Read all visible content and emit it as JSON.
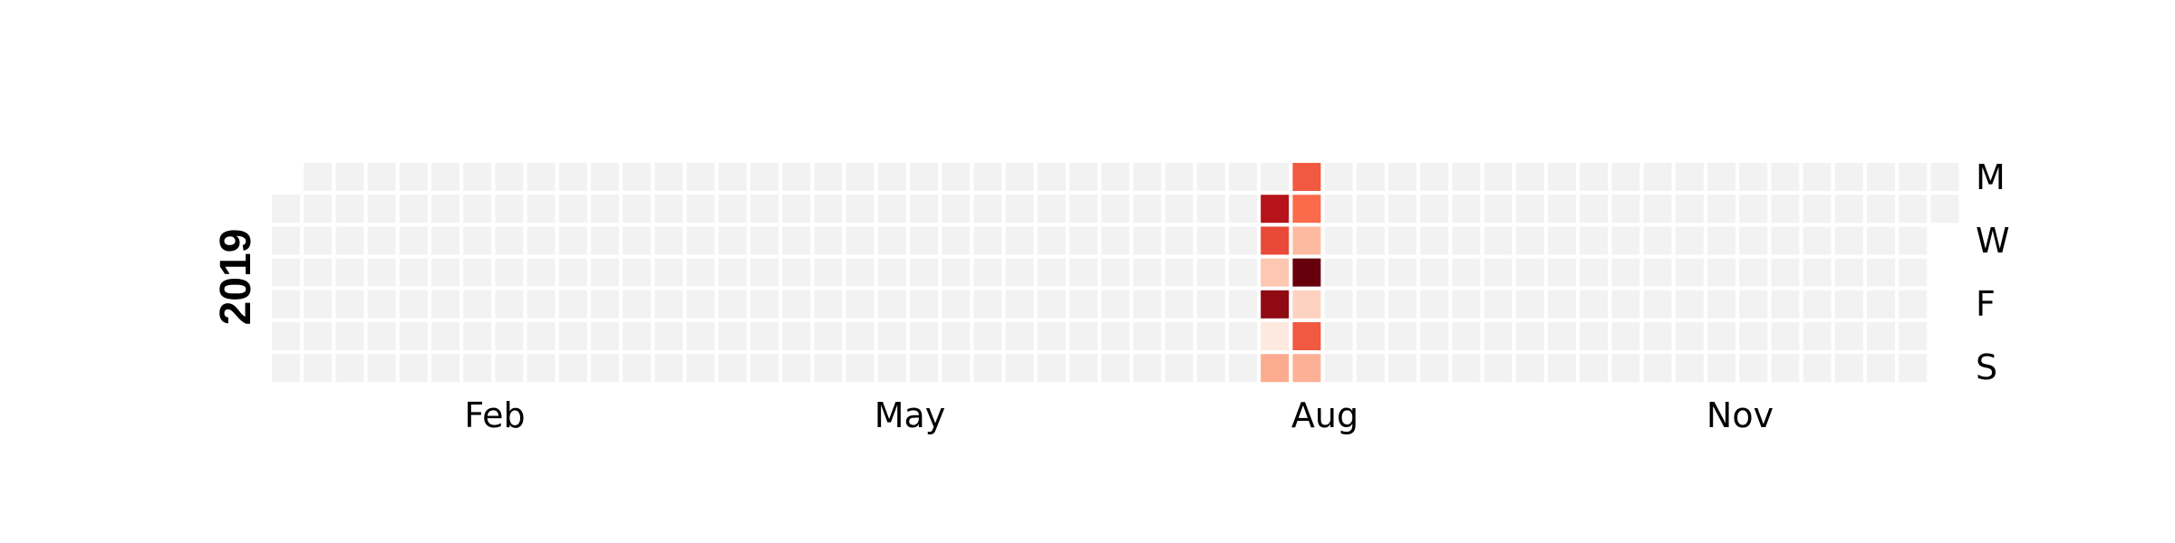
{
  "chart_data": {
    "type": "heatmap",
    "title": "",
    "year_label": "2019",
    "x_tick_labels": [
      "Feb",
      "May",
      "Aug",
      "Nov"
    ],
    "y_tick_labels": [
      "M",
      "W",
      "F",
      "S"
    ],
    "grid": false,
    "legend": "none",
    "colors": {
      "empty": "#f2f2f2",
      "scale": [
        "#fff5f0",
        "#fcbba1",
        "#fb6a4a",
        "#cb181d",
        "#67000d"
      ],
      "border": "#ffffff"
    },
    "value_range": [
      0,
      10
    ],
    "year_start": "2019-01-01",
    "days": 365,
    "values": [
      {
        "date": "2019-08-06",
        "value": 8
      },
      {
        "date": "2019-08-07",
        "value": 6
      },
      {
        "date": "2019-08-08",
        "value": 2
      },
      {
        "date": "2019-08-09",
        "value": 9
      },
      {
        "date": "2019-08-10",
        "value": 0.5
      },
      {
        "date": "2019-08-11",
        "value": 3
      },
      {
        "date": "2019-08-12",
        "value": 5.5
      },
      {
        "date": "2019-08-13",
        "value": 5
      },
      {
        "date": "2019-08-14",
        "value": 2.5
      },
      {
        "date": "2019-08-15",
        "value": 10
      },
      {
        "date": "2019-08-16",
        "value": 1.5
      },
      {
        "date": "2019-08-17",
        "value": 5.5
      },
      {
        "date": "2019-08-18",
        "value": 2.8
      }
    ]
  }
}
